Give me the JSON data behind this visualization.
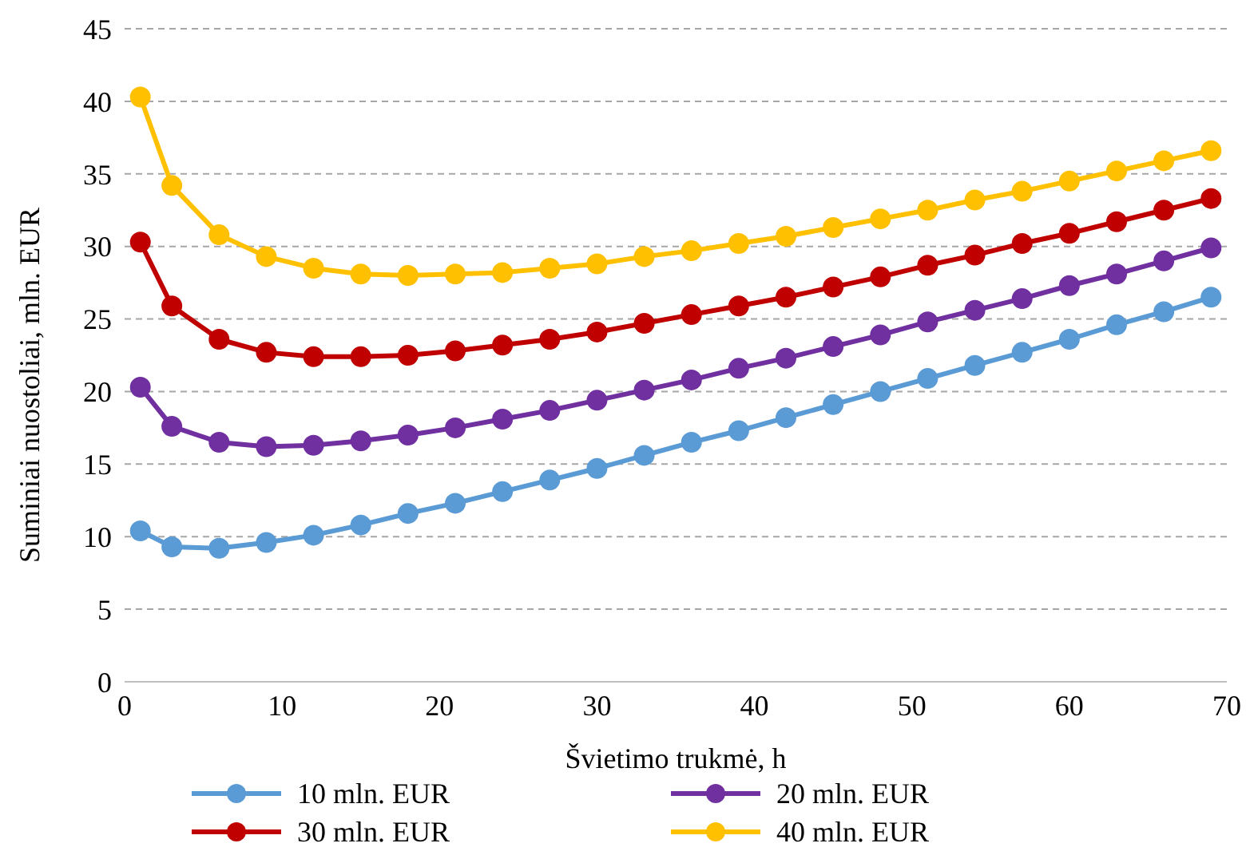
{
  "chart_data": {
    "type": "line",
    "xlabel": "Švietimo trukmė, h",
    "ylabel": "Suminiai nuostoliai, mln. EUR",
    "x": [
      1,
      3,
      6,
      9,
      12,
      15,
      18,
      21,
      24,
      27,
      30,
      33,
      36,
      39,
      42,
      45,
      48,
      51,
      54,
      57,
      60,
      63,
      66,
      69
    ],
    "series": [
      {
        "name": "10 mln. EUR",
        "color": "#5b9bd5",
        "values": [
          10.4,
          9.3,
          9.2,
          9.6,
          10.1,
          10.8,
          11.6,
          12.3,
          13.1,
          13.9,
          14.7,
          15.6,
          16.5,
          17.3,
          18.2,
          19.1,
          20.0,
          20.9,
          21.8,
          22.7,
          23.6,
          24.6,
          25.5,
          26.5
        ]
      },
      {
        "name": "20 mln. EUR",
        "color": "#7030a0",
        "values": [
          20.3,
          17.6,
          16.5,
          16.2,
          16.3,
          16.6,
          17.0,
          17.5,
          18.1,
          18.7,
          19.4,
          20.1,
          20.8,
          21.6,
          22.3,
          23.1,
          23.9,
          24.8,
          25.6,
          26.4,
          27.3,
          28.1,
          29.0,
          29.9
        ]
      },
      {
        "name": "30 mln. EUR",
        "color": "#c00000",
        "values": [
          30.3,
          25.9,
          23.6,
          22.7,
          22.4,
          22.4,
          22.5,
          22.8,
          23.2,
          23.6,
          24.1,
          24.7,
          25.3,
          25.9,
          26.5,
          27.2,
          27.9,
          28.7,
          29.4,
          30.2,
          30.9,
          31.7,
          32.5,
          33.3
        ]
      },
      {
        "name": "40 mln. EUR",
        "color": "#ffc000",
        "values": [
          40.3,
          34.2,
          30.8,
          29.3,
          28.5,
          28.1,
          28.0,
          28.1,
          28.2,
          28.5,
          28.8,
          29.3,
          29.7,
          30.2,
          30.7,
          31.3,
          31.9,
          32.5,
          33.2,
          33.8,
          34.5,
          35.2,
          35.9,
          36.6
        ]
      }
    ],
    "xlim": [
      0,
      70
    ],
    "xticks": [
      0,
      10,
      20,
      30,
      40,
      50,
      60,
      70
    ],
    "ylim": [
      0,
      45
    ],
    "yticks": [
      0,
      5,
      10,
      15,
      20,
      25,
      30,
      35,
      40,
      45
    ],
    "grid": "y",
    "legend": "bottom",
    "marker": "circle",
    "line_style": "solid"
  }
}
